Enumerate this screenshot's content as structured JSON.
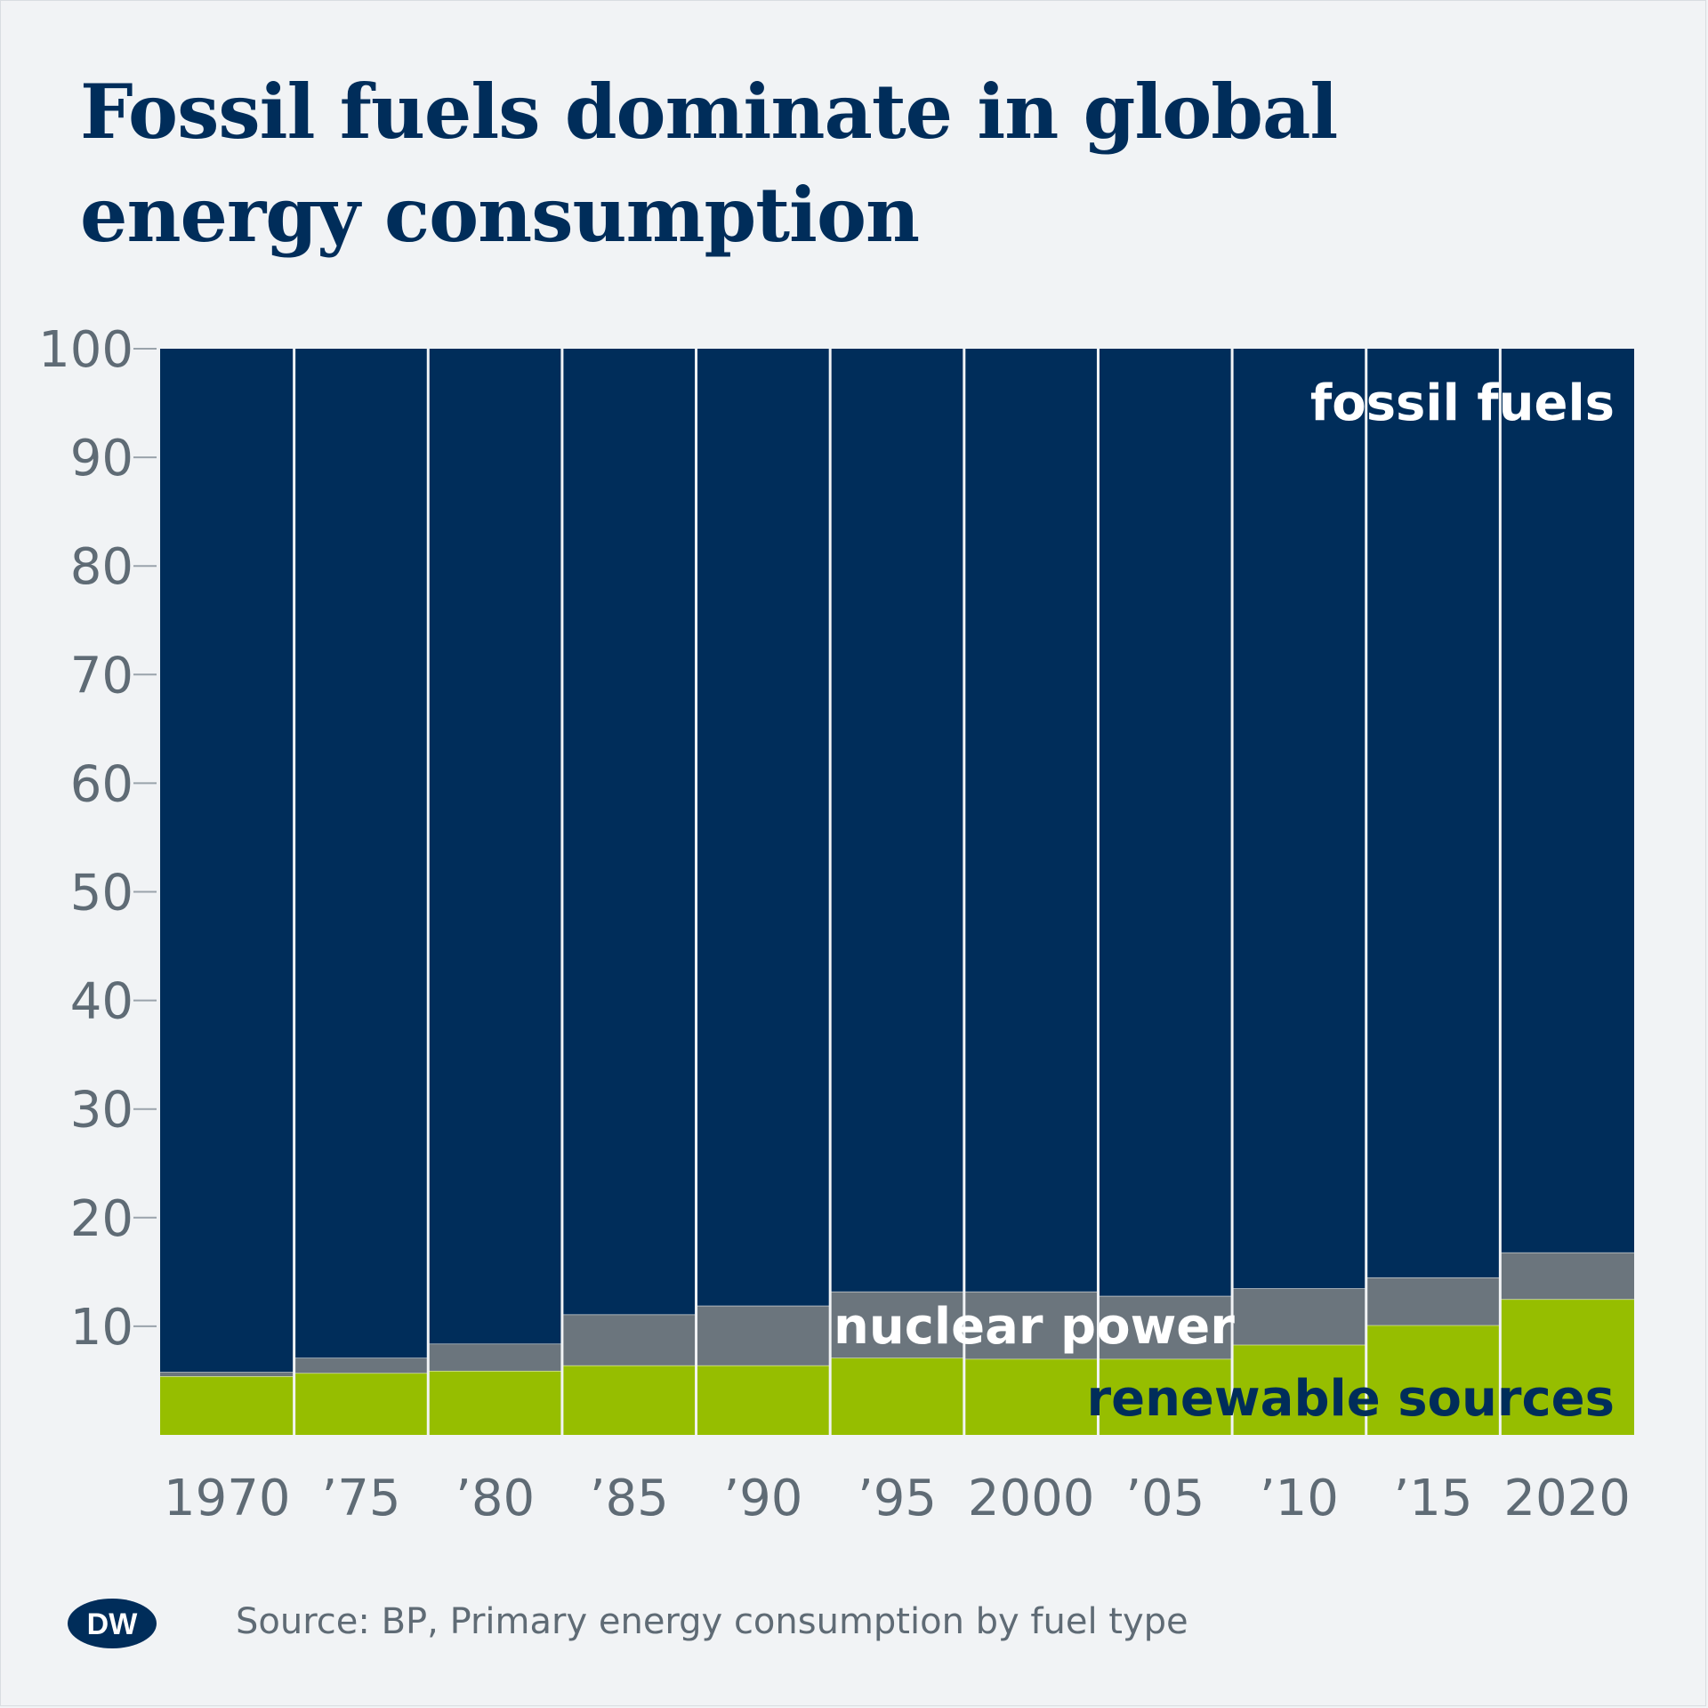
{
  "title": "Fossil fuels dominate in global energy consumption",
  "source": "Source: BP, Primary energy consumption by fuel type",
  "logo": {
    "name": "dw-logo",
    "text": "DW",
    "color": "#002d5a"
  },
  "colors": {
    "fossil": "#002d5a",
    "nuclear": "#6b757d",
    "renewable": "#96be00",
    "axis_text": "#5f6b75",
    "background": "#f1f3f5"
  },
  "chart_data": {
    "type": "bar",
    "stacked": true,
    "categories": [
      "1970",
      "’75",
      "’80",
      "’85",
      "’90",
      "’95",
      "2000",
      "’05",
      "’10",
      "’15",
      "2020"
    ],
    "ylim": [
      0,
      100
    ],
    "yticks": [
      10,
      20,
      30,
      40,
      50,
      60,
      70,
      80,
      90,
      100
    ],
    "grid": false,
    "series": [
      {
        "name": "renewable sources",
        "key": "renewable",
        "values": [
          5.4,
          5.7,
          5.9,
          6.4,
          6.4,
          7.1,
          7.0,
          7.0,
          8.3,
          10.1,
          12.5
        ]
      },
      {
        "name": "nuclear power",
        "key": "nuclear",
        "values": [
          0.4,
          1.4,
          2.5,
          4.7,
          5.5,
          6.1,
          6.2,
          5.8,
          5.2,
          4.4,
          4.3
        ]
      },
      {
        "name": "fossil fuels",
        "key": "fossil",
        "values": [
          94.2,
          92.9,
          91.6,
          88.9,
          88.1,
          86.8,
          86.8,
          87.2,
          86.5,
          85.5,
          83.2
        ]
      }
    ]
  }
}
